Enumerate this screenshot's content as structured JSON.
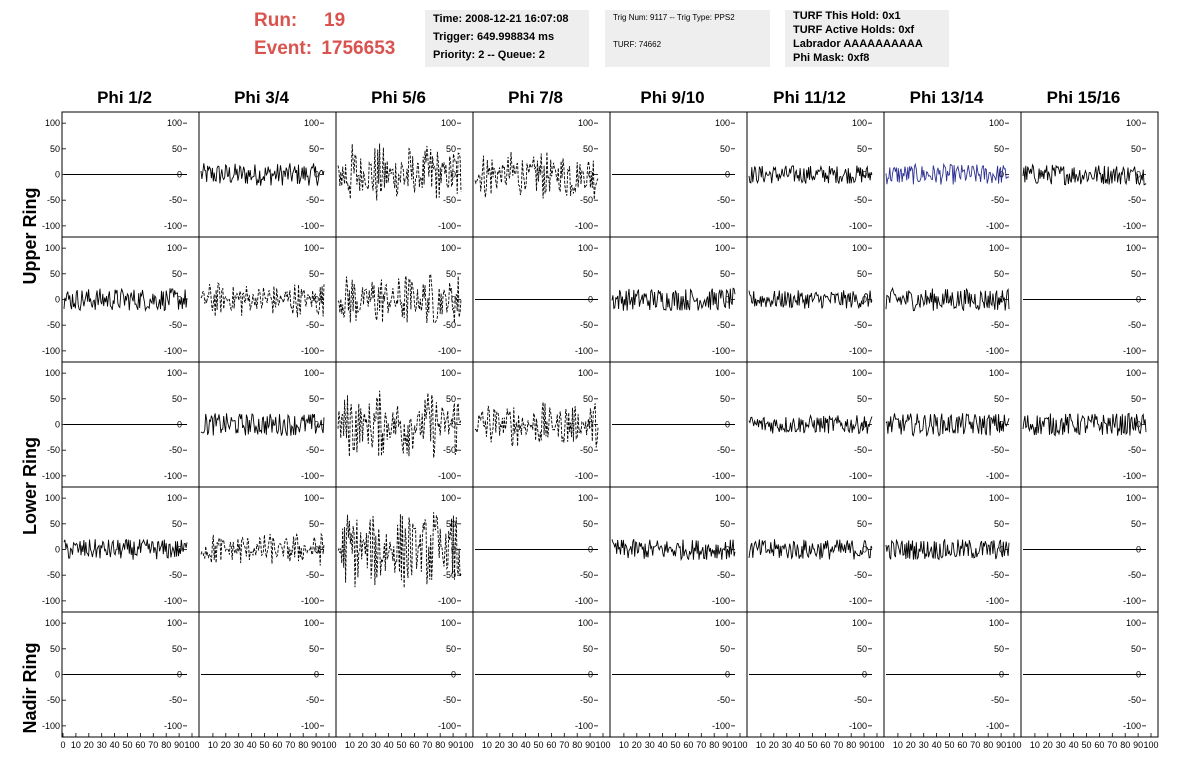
{
  "header": {
    "run_label": "Run:",
    "run_value": "19",
    "event_label": "Event:",
    "event_value": "1756653"
  },
  "info_box_time": {
    "time": "Time: 2008-12-21 16:07:08",
    "trigger": "Trigger: 649.998834 ms",
    "priority": "Priority: 2 -- Queue: 2"
  },
  "info_box_trig": {
    "trig": "Trig Num: 9117 -- Trig Type: PPS2",
    "turf": "TURF: 74662"
  },
  "info_box_turf": {
    "hold": "TURF This Hold: 0x1",
    "active": "TURF Active Holds: 0xf",
    "labrador": "Labrador AAAAAAAAAA",
    "phimask": "Phi Mask: 0xf8"
  },
  "columns": [
    "Phi 1/2",
    "Phi 3/4",
    "Phi 5/6",
    "Phi 7/8",
    "Phi 9/10",
    "Phi 11/12",
    "Phi 13/14",
    "Phi 15/16"
  ],
  "row_labels": {
    "upper": "Upper Ring",
    "lower": "Lower Ring",
    "nadir": "Nadir Ring"
  },
  "y_ticks": [
    "100",
    "50",
    "0",
    "-50",
    "-100"
  ],
  "x_ticks": [
    "0",
    "10",
    "20",
    "30",
    "40",
    "50",
    "60",
    "70",
    "80",
    "90",
    "100"
  ],
  "colors": {
    "run_text": "#d9534f",
    "info_bg": "#eeeeee",
    "trace": "#000000",
    "trace_blue": "#2e3192"
  },
  "chart_data": {
    "type": "line",
    "xlim": [
      0,
      100
    ],
    "ylim": [
      -110,
      110
    ],
    "rows": 5,
    "cols": 8,
    "panel_amplitude": [
      [
        0,
        22,
        35,
        28,
        0,
        18,
        20,
        20
      ],
      [
        22,
        20,
        30,
        0,
        22,
        18,
        22,
        0
      ],
      [
        0,
        22,
        38,
        25,
        0,
        18,
        22,
        22
      ],
      [
        20,
        18,
        45,
        0,
        20,
        20,
        20,
        0
      ],
      [
        0,
        0,
        0,
        0,
        0,
        0,
        0,
        0
      ]
    ],
    "panel_style": [
      [
        "flat",
        "solid",
        "dashed",
        "dashed",
        "flat",
        "solid",
        "blue",
        "solid"
      ],
      [
        "solid",
        "dashed",
        "dashed",
        "flat",
        "solid",
        "solid",
        "solid",
        "flat"
      ],
      [
        "flat",
        "solid",
        "dashed",
        "dashed",
        "solid",
        "solid",
        "solid",
        "solid"
      ],
      [
        "solid",
        "dashed",
        "dashed",
        "flat",
        "solid",
        "solid",
        "solid",
        "flat"
      ],
      [
        "flat",
        "flat",
        "flat",
        "flat",
        "flat",
        "flat",
        "flat",
        "flat"
      ]
    ]
  }
}
